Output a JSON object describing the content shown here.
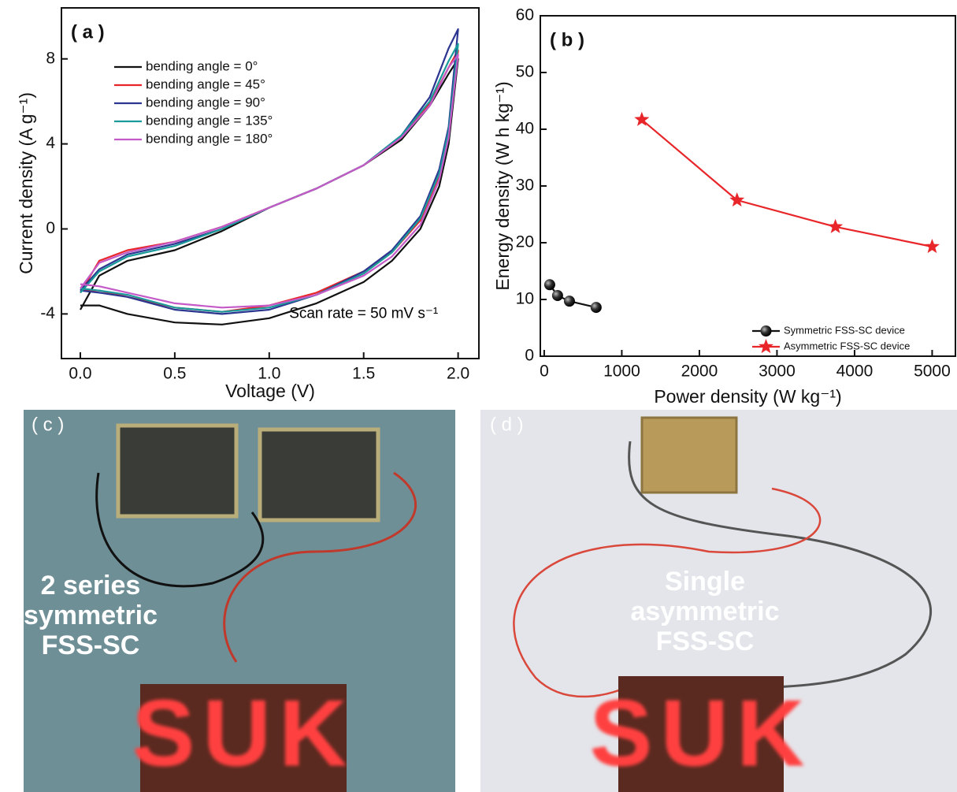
{
  "chart_data": [
    {
      "type": "line",
      "panel_label": "( a )",
      "x_label": "Voltage (V)",
      "y_label": "Current density (A g⁻¹)",
      "annotation": "Scan rate = 50 mV s⁻¹",
      "x": [
        0,
        0.1,
        0.25,
        0.5,
        0.75,
        1.0,
        1.25,
        1.5,
        1.7,
        1.85,
        1.95,
        2.0,
        1.95,
        1.9,
        1.8,
        1.65,
        1.5,
        1.25,
        1.0,
        0.75,
        0.5,
        0.25,
        0.1,
        0
      ],
      "series": [
        {
          "name": "bending angle = 0°",
          "color": "#111111",
          "values": [
            -3.8,
            -2.2,
            -1.5,
            -1.0,
            -0.1,
            1.0,
            1.9,
            3.0,
            4.2,
            5.8,
            7.3,
            8.0,
            4.0,
            2.0,
            0.0,
            -1.5,
            -2.5,
            -3.5,
            -4.2,
            -4.5,
            -4.4,
            -4.0,
            -3.6,
            -3.6
          ]
        },
        {
          "name": "bending angle = 45°",
          "color": "#e8262a",
          "values": [
            -3.0,
            -1.5,
            -1.0,
            -0.6,
            0.1,
            1.0,
            1.9,
            3.0,
            4.3,
            5.9,
            7.6,
            8.4,
            4.5,
            2.5,
            0.4,
            -1.1,
            -2.0,
            -3.0,
            -3.6,
            -3.9,
            -3.7,
            -3.2,
            -2.9,
            -2.9
          ]
        },
        {
          "name": "bending angle = 90°",
          "color": "#2c3590",
          "values": [
            -2.9,
            -1.9,
            -1.2,
            -0.7,
            0.0,
            1.0,
            1.9,
            3.0,
            4.4,
            6.2,
            8.5,
            9.4,
            4.8,
            2.8,
            0.6,
            -1.0,
            -2.0,
            -3.1,
            -3.8,
            -4.0,
            -3.8,
            -3.2,
            -3.0,
            -2.9
          ]
        },
        {
          "name": "bending angle = 135°",
          "color": "#1a9a9a",
          "values": [
            -3.0,
            -2.0,
            -1.3,
            -0.8,
            0.0,
            1.0,
            1.9,
            3.0,
            4.4,
            6.0,
            7.9,
            8.7,
            4.6,
            2.6,
            0.5,
            -1.1,
            -2.1,
            -3.1,
            -3.7,
            -3.9,
            -3.7,
            -3.1,
            -2.9,
            -2.8
          ]
        },
        {
          "name": "bending angle = 180°",
          "color": "#c45ac8",
          "values": [
            -2.8,
            -1.6,
            -1.1,
            -0.6,
            0.1,
            1.0,
            1.9,
            3.0,
            4.3,
            5.8,
            7.6,
            8.2,
            4.3,
            2.3,
            0.2,
            -1.3,
            -2.2,
            -3.1,
            -3.6,
            -3.7,
            -3.5,
            -3.0,
            -2.7,
            -2.6
          ]
        }
      ],
      "xlim": [
        -0.1,
        2.11
      ],
      "ylim": [
        -6.1,
        10.4
      ],
      "xticks": [
        {
          "value": 0,
          "label": "0.0"
        },
        0.5,
        {
          "value": 1,
          "label": "1.0"
        },
        1.5,
        {
          "value": 2,
          "label": "2.0"
        }
      ],
      "yticks": [
        -4,
        0,
        4,
        8
      ],
      "legend": "upper left"
    },
    {
      "type": "line",
      "panel_label": "( b )",
      "x_label": "Power density (W kg⁻¹)",
      "y_label": "Energy density (W h kg⁻¹)",
      "series": [
        {
          "name": "Symmetric FSS-SC device",
          "color": "#111111",
          "marker": "circle",
          "x": [
            71,
            172,
            325,
            669
          ],
          "values": [
            12.6,
            10.7,
            9.7,
            8.6
          ]
        },
        {
          "name": "Asymmetric FSS-SC device",
          "color": "#e8262a",
          "marker": "star",
          "x": [
            1258,
            2485,
            3753,
            5000
          ],
          "values": [
            41.7,
            27.5,
            22.8,
            19.3
          ]
        }
      ],
      "xlim": [
        -50,
        5300
      ],
      "ylim": [
        0,
        60
      ],
      "xticks": [
        0,
        1000,
        2000,
        3000,
        4000,
        5000
      ],
      "yticks": [
        0,
        10,
        20,
        30,
        40,
        50,
        60
      ],
      "legend": "lower right"
    }
  ],
  "photos": [
    {
      "label": "( c )",
      "caption": [
        "2 series",
        "symmetric",
        "FSS-SC"
      ],
      "led_text": "SUK"
    },
    {
      "label": "( d )",
      "caption": [
        "Single",
        "asymmetric",
        "FSS-SC"
      ],
      "led_text": "SUK"
    }
  ]
}
